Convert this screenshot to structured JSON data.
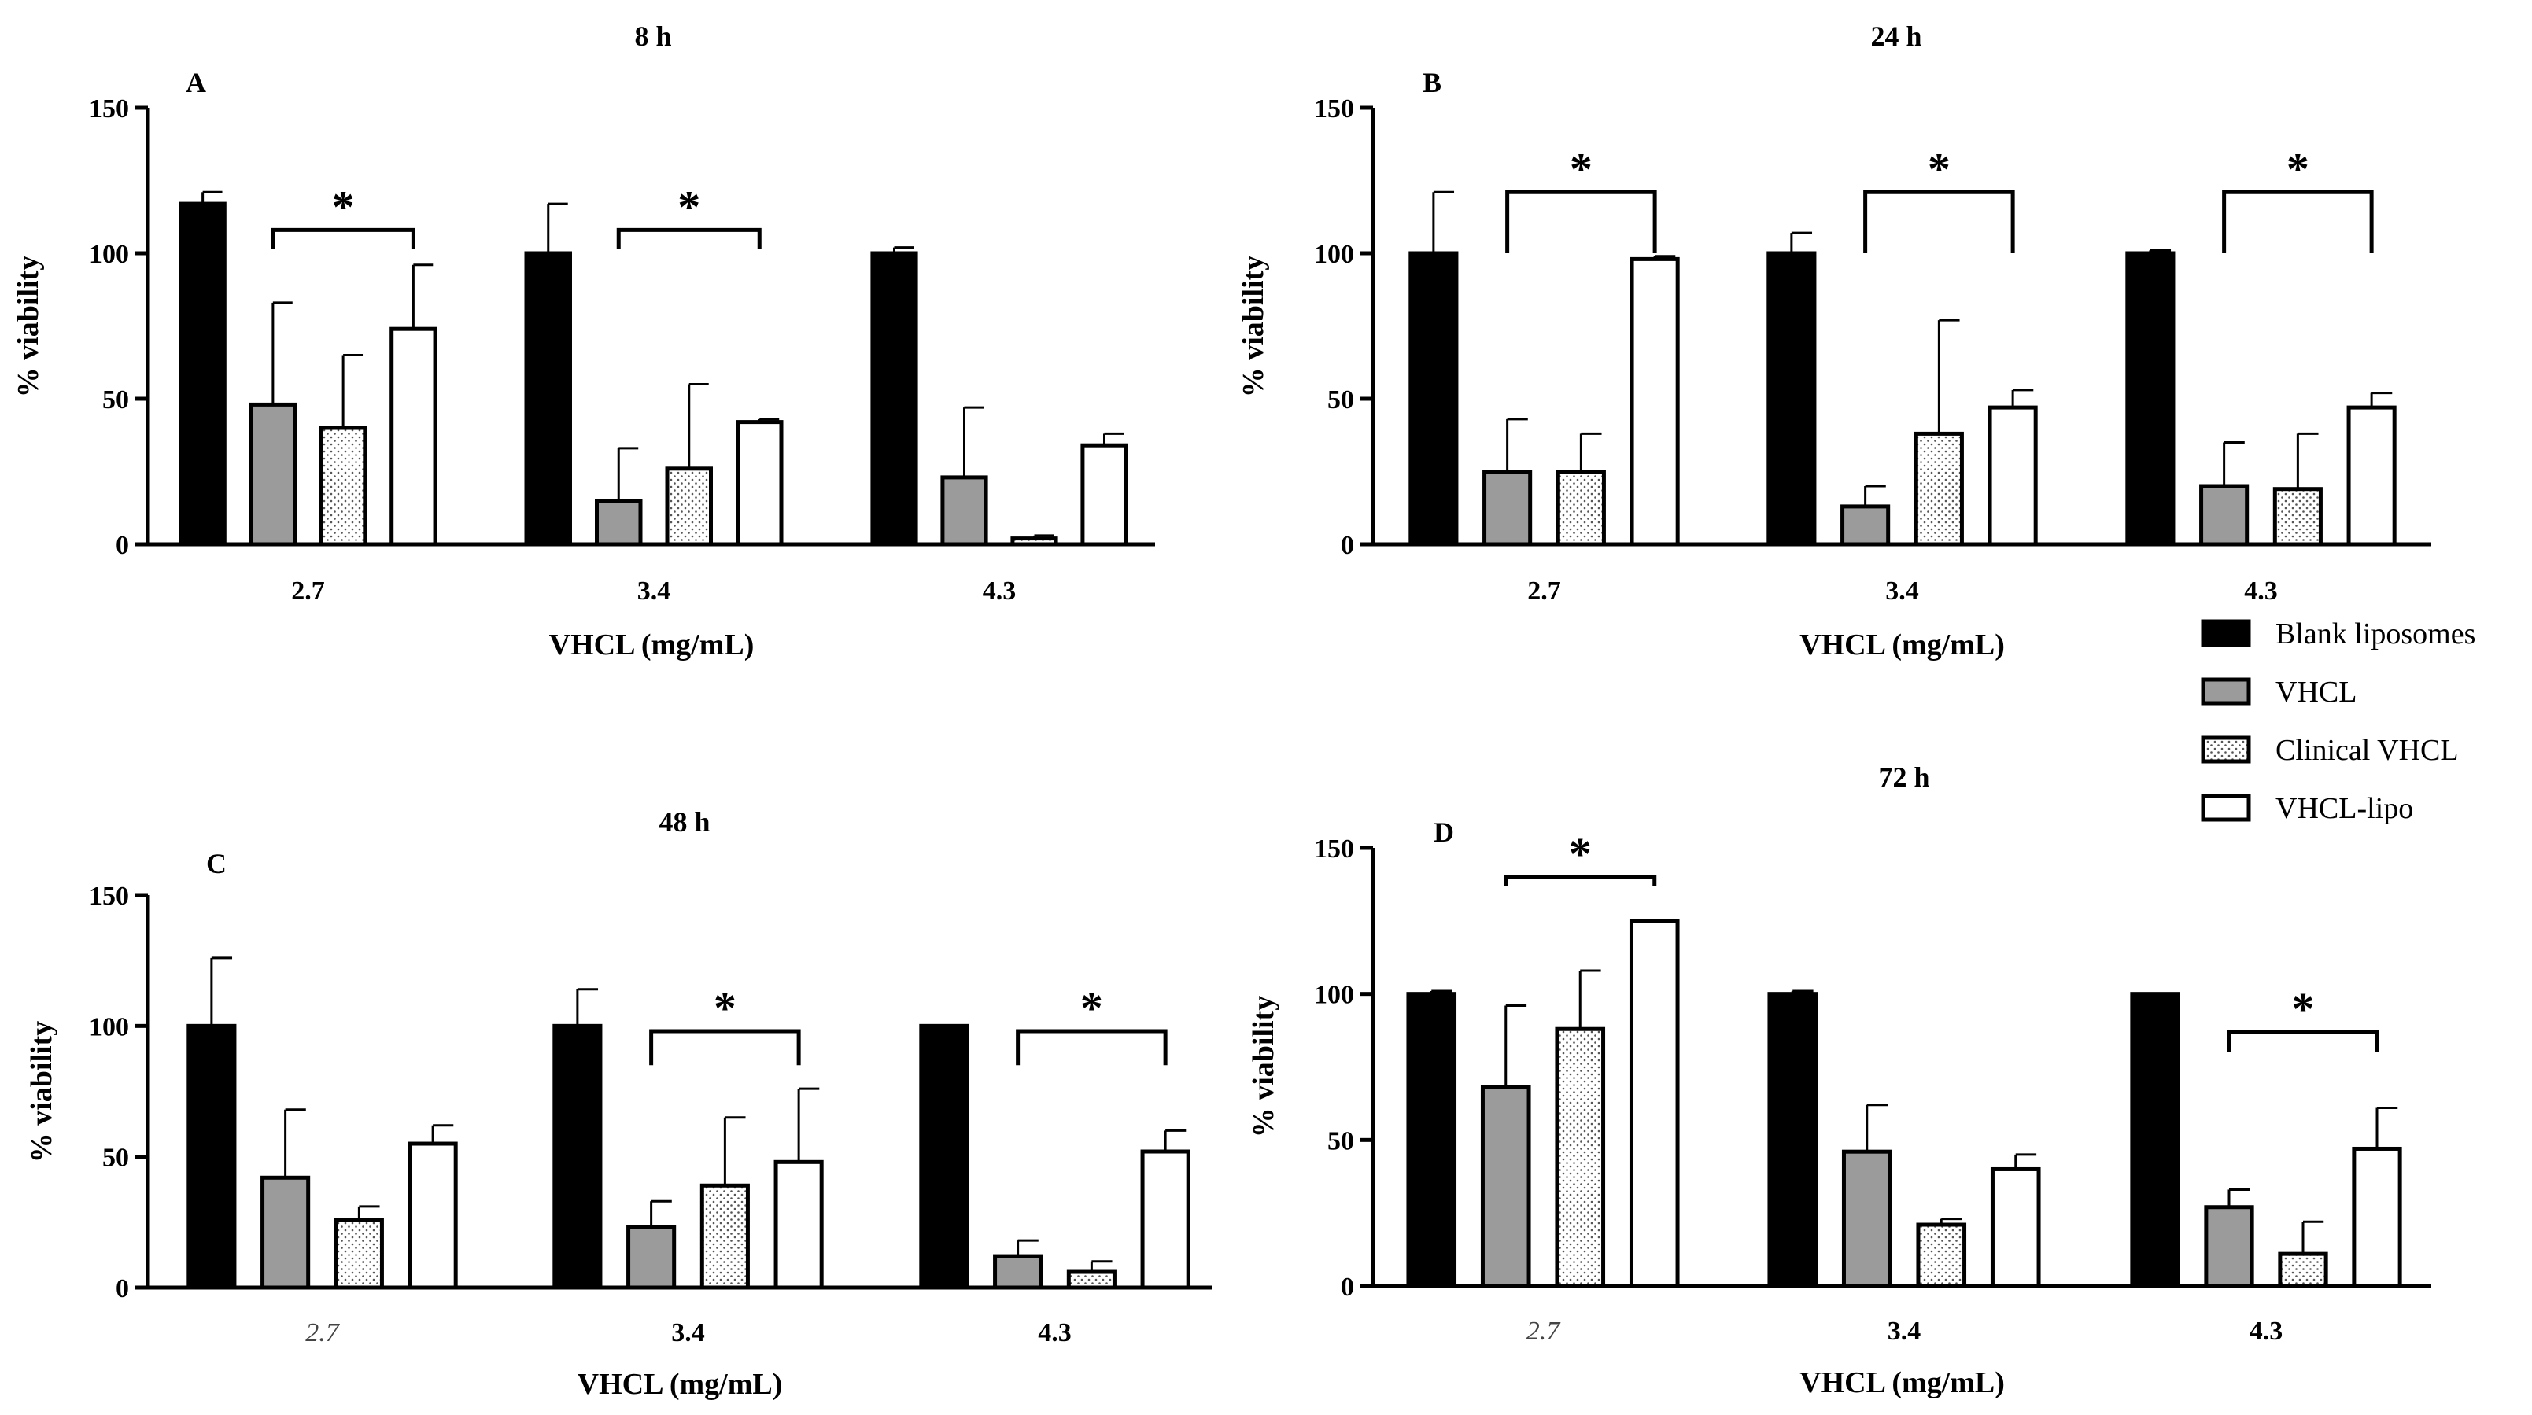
{
  "colors": {
    "blank": "#000000",
    "vhcl": "#9b9b9b",
    "clinical": "#ffffff",
    "lipo": "#ffffff",
    "axis": "#000000"
  },
  "legend": [
    {
      "name": "Blank liposomes",
      "style": "blank"
    },
    {
      "name": "VHCL",
      "style": "vhcl"
    },
    {
      "name": "Clinical VHCL",
      "style": "clinical"
    },
    {
      "name": "VHCL-lipo",
      "style": "lipo"
    }
  ],
  "chart_data": [
    {
      "type": "bar",
      "panel_label": "A",
      "title": "8 h",
      "xlabel": "VHCL (mg/mL)",
      "ylabel": "% viability",
      "ylim": [
        0,
        150
      ],
      "yticks": [
        "0",
        "50",
        "100",
        "150"
      ],
      "categories": [
        "2.7",
        "3.4",
        "4.3"
      ],
      "italic_categories": [],
      "series": [
        {
          "name": "Blank liposomes",
          "values": [
            117,
            100,
            100
          ],
          "errors": [
            4,
            17,
            2
          ]
        },
        {
          "name": "VHCL",
          "values": [
            48,
            15,
            23
          ],
          "errors": [
            35,
            18,
            24
          ]
        },
        {
          "name": "Clinical VHCL",
          "values": [
            40,
            26,
            2
          ],
          "errors": [
            25,
            29,
            1
          ]
        },
        {
          "name": "VHCL-lipo",
          "values": [
            74,
            42,
            34
          ],
          "errors": [
            22,
            1,
            4
          ]
        }
      ],
      "significance": [
        {
          "group": 0,
          "from_series": 1,
          "to_series": 3,
          "level": 108,
          "label": "*"
        },
        {
          "group": 1,
          "from_series": 1,
          "to_series": 3,
          "level": 108,
          "label": "*"
        }
      ]
    },
    {
      "type": "bar",
      "panel_label": "B",
      "title": "24 h",
      "xlabel": "VHCL (mg/mL)",
      "ylabel": "% viability",
      "ylim": [
        0,
        150
      ],
      "yticks": [
        "0",
        "50",
        "100",
        "150"
      ],
      "categories": [
        "2.7",
        "3.4",
        "4.3"
      ],
      "italic_categories": [],
      "series": [
        {
          "name": "Blank liposomes",
          "values": [
            100,
            100,
            100
          ],
          "errors": [
            21,
            7,
            1
          ]
        },
        {
          "name": "VHCL",
          "values": [
            25,
            13,
            20
          ],
          "errors": [
            18,
            7,
            15
          ]
        },
        {
          "name": "Clinical VHCL",
          "values": [
            25,
            38,
            19
          ],
          "errors": [
            13,
            39,
            19
          ]
        },
        {
          "name": "VHCL-lipo",
          "values": [
            98,
            47,
            47
          ],
          "errors": [
            1,
            6,
            5
          ]
        }
      ],
      "significance": [
        {
          "group": 0,
          "from_series": 1,
          "to_series": 3,
          "level": 121,
          "drop_to": 100,
          "label": "*"
        },
        {
          "group": 1,
          "from_series": 1,
          "to_series": 3,
          "level": 121,
          "drop_to": 100,
          "label": "*"
        },
        {
          "group": 2,
          "from_series": 1,
          "to_series": 3,
          "level": 121,
          "drop_to": 100,
          "label": "*"
        }
      ]
    },
    {
      "type": "bar",
      "panel_label": "C",
      "title": "48 h",
      "xlabel": "VHCL (mg/mL)",
      "ylabel": "% viability",
      "ylim": [
        0,
        150
      ],
      "yticks": [
        "0",
        "50",
        "100",
        "150"
      ],
      "categories": [
        "2.7",
        "3.4",
        "4.3"
      ],
      "italic_categories": [
        "2.7"
      ],
      "series": [
        {
          "name": "Blank liposomes",
          "values": [
            100,
            100,
            100
          ],
          "errors": [
            26,
            14,
            0
          ]
        },
        {
          "name": "VHCL",
          "values": [
            42,
            23,
            12
          ],
          "errors": [
            26,
            10,
            6
          ]
        },
        {
          "name": "Clinical VHCL",
          "values": [
            26,
            39,
            6
          ],
          "errors": [
            5,
            26,
            4
          ]
        },
        {
          "name": "VHCL-lipo",
          "values": [
            55,
            48,
            52
          ],
          "errors": [
            7,
            28,
            8
          ]
        }
      ],
      "significance": [
        {
          "group": 1,
          "from_series": 1,
          "to_series": 3,
          "level": 98,
          "drop_to": 85,
          "label": "*"
        },
        {
          "group": 2,
          "from_series": 1,
          "to_series": 3,
          "level": 98,
          "drop_to": 85,
          "label": "*"
        }
      ]
    },
    {
      "type": "bar",
      "panel_label": "D",
      "title": "72 h",
      "xlabel": "VHCL (mg/mL)",
      "ylabel": "% viability",
      "ylim": [
        0,
        150
      ],
      "yticks": [
        "0",
        "50",
        "100",
        "150"
      ],
      "categories": [
        "2.7",
        "3.4",
        "4.3"
      ],
      "italic_categories": [
        "2.7"
      ],
      "series": [
        {
          "name": "Blank liposomes",
          "values": [
            100,
            100,
            100
          ],
          "errors": [
            1,
            1,
            0
          ]
        },
        {
          "name": "VHCL",
          "values": [
            68,
            46,
            27
          ],
          "errors": [
            28,
            16,
            6
          ]
        },
        {
          "name": "Clinical VHCL",
          "values": [
            88,
            21,
            11
          ],
          "errors": [
            20,
            2,
            11
          ]
        },
        {
          "name": "VHCL-lipo",
          "values": [
            125,
            40,
            47
          ],
          "errors": [
            0,
            5,
            14
          ]
        }
      ],
      "significance": [
        {
          "group": 0,
          "from_series": 1,
          "to_series": 3,
          "level": 140,
          "drop_to": 137,
          "label": "*"
        },
        {
          "group": 2,
          "from_series": 1,
          "to_series": 3,
          "level": 87,
          "drop_to": 80,
          "label": "*"
        }
      ]
    }
  ]
}
